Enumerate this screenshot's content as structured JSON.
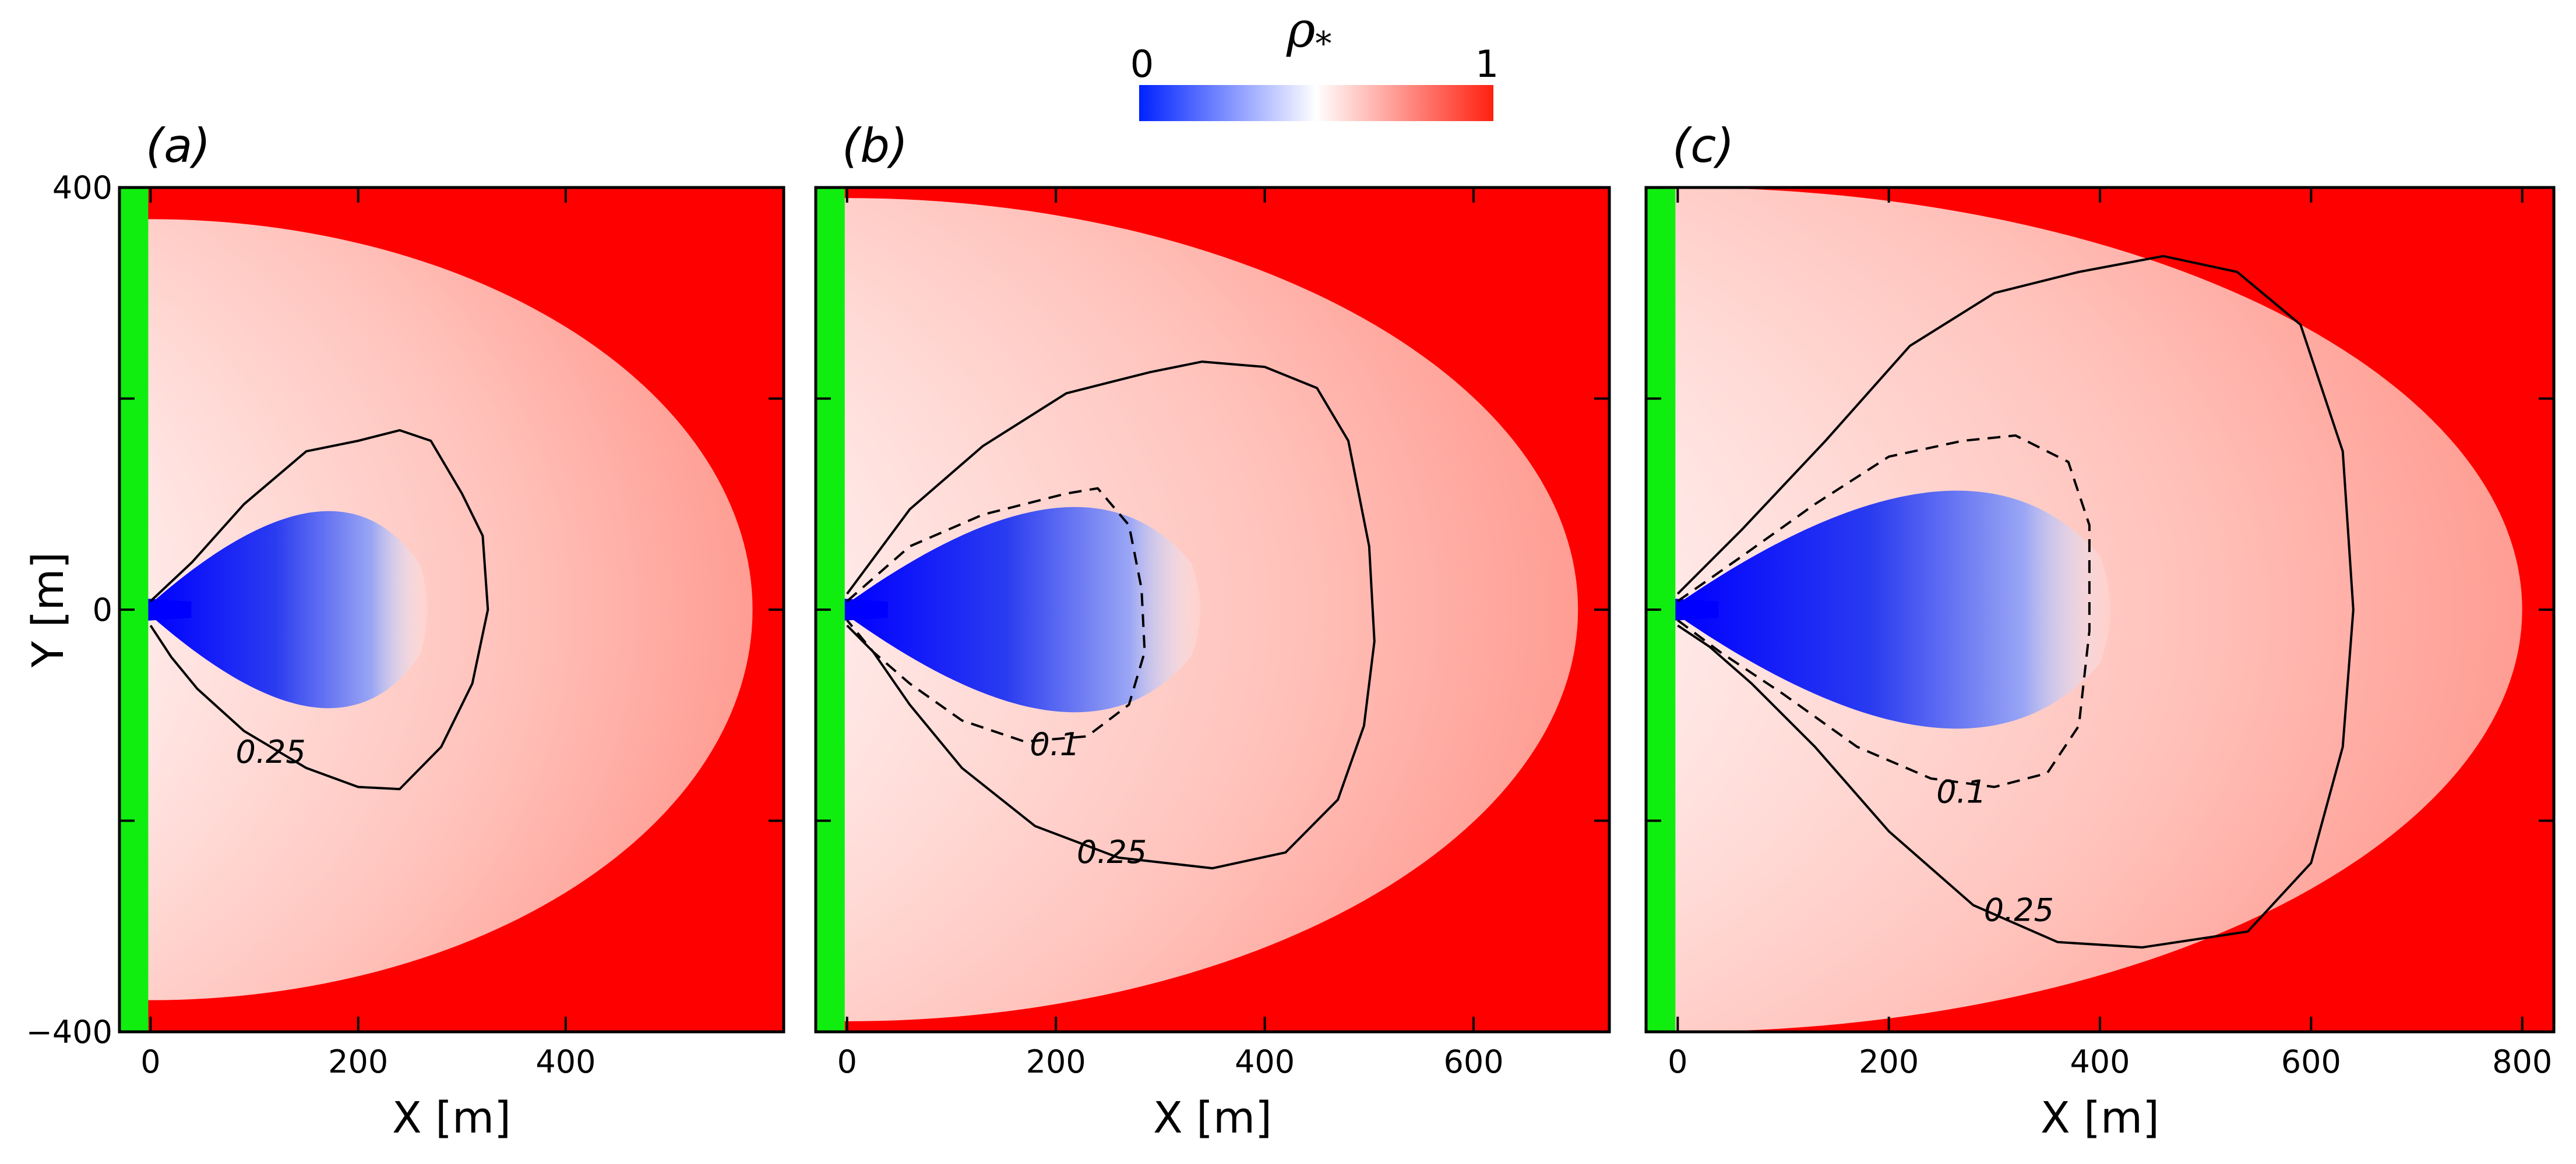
{
  "chart_data": {
    "type": "heatmap",
    "colorbar": {
      "label_symbol": "ρ",
      "label_subscript": "*",
      "min_label": "0",
      "max_label": "1",
      "range": [
        0,
        1
      ],
      "colors": [
        "#0022ff",
        "#ffffff",
        "#ff2010"
      ]
    },
    "panels": [
      {
        "label": "(a)",
        "xlabel": "X [m]",
        "ylabel": "Y [m]",
        "xlim": [
          -30,
          610
        ],
        "ylim": [
          -400,
          400
        ],
        "x_ticks": [
          0,
          200,
          400
        ],
        "x_tick_labels": [
          "0",
          "200",
          "400"
        ],
        "y_ticks": [
          -400,
          0,
          400
        ],
        "y_tick_labels": [
          "−400",
          "0",
          "400"
        ],
        "plume_extent": {
          "x_max": 580,
          "y_half": 370
        },
        "low_core": {
          "x_max": 260,
          "y_half": 120
        },
        "contours": [
          {
            "label": "0.25",
            "style": "solid",
            "label_at": [
              82,
              -145
            ],
            "points": [
              [
                0,
                8
              ],
              [
                40,
                45
              ],
              [
                90,
                100
              ],
              [
                150,
                150
              ],
              [
                200,
                160
              ],
              [
                240,
                170
              ],
              [
                270,
                160
              ],
              [
                300,
                110
              ],
              [
                320,
                70
              ],
              [
                325,
                0
              ],
              [
                310,
                -70
              ],
              [
                280,
                -130
              ],
              [
                240,
                -170
              ],
              [
                200,
                -168
              ],
              [
                150,
                -150
              ],
              [
                90,
                -115
              ],
              [
                45,
                -75
              ],
              [
                20,
                -45
              ],
              [
                0,
                -15
              ]
            ]
          }
        ]
      },
      {
        "label": "(b)",
        "xlabel": "X [m]",
        "ylabel": "",
        "xlim": [
          -30,
          730
        ],
        "ylim": [
          -400,
          400
        ],
        "x_ticks": [
          0,
          200,
          400,
          600
        ],
        "x_tick_labels": [
          "0",
          "200",
          "400",
          "600"
        ],
        "y_ticks": [
          -400,
          0,
          400
        ],
        "y_tick_labels": [],
        "plume_extent": {
          "x_max": 700,
          "y_half": 390
        },
        "low_core": {
          "x_max": 330,
          "y_half": 125
        },
        "contours": [
          {
            "label": "0.25",
            "style": "solid",
            "label_at": [
              220,
              -240
            ],
            "points": [
              [
                0,
                15
              ],
              [
                60,
                95
              ],
              [
                130,
                155
              ],
              [
                210,
                205
              ],
              [
                290,
                225
              ],
              [
                340,
                235
              ],
              [
                400,
                230
              ],
              [
                450,
                210
              ],
              [
                480,
                160
              ],
              [
                500,
                60
              ],
              [
                505,
                -30
              ],
              [
                495,
                -110
              ],
              [
                470,
                -180
              ],
              [
                420,
                -230
              ],
              [
                350,
                -245
              ],
              [
                260,
                -235
              ],
              [
                180,
                -205
              ],
              [
                110,
                -150
              ],
              [
                60,
                -90
              ],
              [
                25,
                -40
              ],
              [
                0,
                -15
              ]
            ]
          },
          {
            "label": "0.1",
            "style": "dashed",
            "label_at": [
              175,
              -138
            ],
            "points": [
              [
                0,
                8
              ],
              [
                60,
                60
              ],
              [
                130,
                90
              ],
              [
                210,
                110
              ],
              [
                240,
                115
              ],
              [
                270,
                80
              ],
              [
                282,
                20
              ],
              [
                285,
                -40
              ],
              [
                270,
                -90
              ],
              [
                230,
                -120
              ],
              [
                170,
                -125
              ],
              [
                110,
                -105
              ],
              [
                60,
                -70
              ],
              [
                25,
                -40
              ],
              [
                0,
                -10
              ]
            ]
          }
        ]
      },
      {
        "label": "(c)",
        "xlabel": "X [m]",
        "ylabel": "",
        "xlim": [
          -30,
          830
        ],
        "ylim": [
          -400,
          400
        ],
        "x_ticks": [
          0,
          200,
          400,
          600,
          800
        ],
        "x_tick_labels": [
          "0",
          "200",
          "400",
          "600",
          "800"
        ],
        "y_ticks": [
          -400,
          0,
          400
        ],
        "y_tick_labels": [],
        "plume_extent": {
          "x_max": 800,
          "y_half": 400
        },
        "low_core": {
          "x_max": 400,
          "y_half": 145
        },
        "contours": [
          {
            "label": "0.25",
            "style": "solid",
            "label_at": [
              290,
              -295
            ],
            "points": [
              [
                0,
                15
              ],
              [
                60,
                75
              ],
              [
                140,
                160
              ],
              [
                220,
                250
              ],
              [
                300,
                300
              ],
              [
                380,
                320
              ],
              [
                460,
                335
              ],
              [
                530,
                320
              ],
              [
                590,
                270
              ],
              [
                630,
                150
              ],
              [
                640,
                0
              ],
              [
                630,
                -130
              ],
              [
                600,
                -240
              ],
              [
                540,
                -305
              ],
              [
                440,
                -320
              ],
              [
                360,
                -315
              ],
              [
                280,
                -280
              ],
              [
                200,
                -210
              ],
              [
                130,
                -130
              ],
              [
                70,
                -70
              ],
              [
                30,
                -35
              ],
              [
                0,
                -15
              ]
            ]
          },
          {
            "label": "0.1",
            "style": "dashed",
            "label_at": [
              245,
              -183
            ],
            "points": [
              [
                0,
                8
              ],
              [
                60,
                50
              ],
              [
                130,
                100
              ],
              [
                200,
                145
              ],
              [
                270,
                160
              ],
              [
                320,
                165
              ],
              [
                370,
                140
              ],
              [
                390,
                80
              ],
              [
                390,
                -20
              ],
              [
                380,
                -110
              ],
              [
                350,
                -155
              ],
              [
                300,
                -168
              ],
              [
                240,
                -160
              ],
              [
                170,
                -130
              ],
              [
                100,
                -80
              ],
              [
                40,
                -40
              ],
              [
                0,
                -10
              ]
            ]
          }
        ]
      }
    ]
  }
}
